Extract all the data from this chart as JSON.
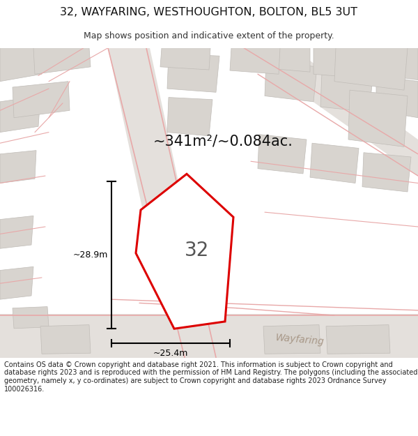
{
  "title": "32, WAYFARING, WESTHOUGHTON, BOLTON, BL5 3UT",
  "subtitle": "Map shows position and indicative extent of the property.",
  "area_text": "~341m²/~0.084ac.",
  "property_number": "32",
  "dim_width": "~25.4m",
  "dim_height": "~28.9m",
  "road_label_diag": "Wayfaring",
  "road_label_horiz": "Wayfaring",
  "footer": "Contains OS data © Crown copyright and database right 2021. This information is subject to Crown copyright and database rights 2023 and is reproduced with the permission of HM Land Registry. The polygons (including the associated geometry, namely x, y co-ordinates) are subject to Crown copyright and database rights 2023 Ordnance Survey 100026316.",
  "bg_color": "#f0eeec",
  "road_color": "#e8e4e0",
  "block_color": "#d8d4cf",
  "property_fill": "#ffffff",
  "property_edge": "#dd0000",
  "road_line_color": "#e8a8a8",
  "dim_line_color": "#000000",
  "footer_color": "#222222",
  "title_color": "#111111",
  "subtitle_color": "#333333",
  "area_text_color": "#111111",
  "number_color": "#555555"
}
